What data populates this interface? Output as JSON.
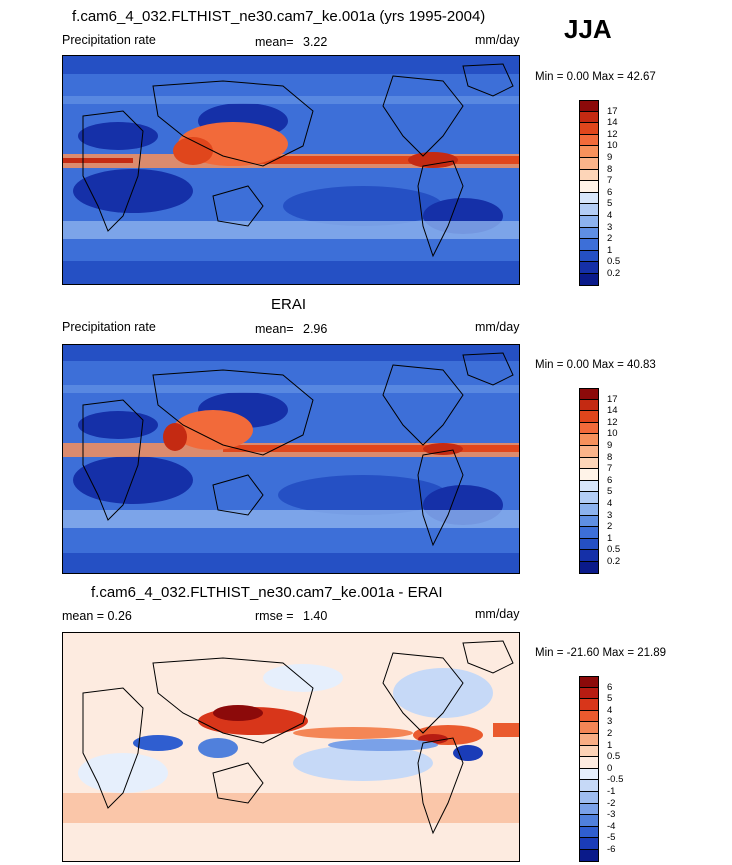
{
  "season": "JJA",
  "panels": [
    {
      "id": "model",
      "title": "f.cam6_4_032.FLTHIST_ne30.cam7_ke.001a (yrs 1995-2004)",
      "left_label": "Precipitation rate",
      "stat_label": "mean=",
      "stat_value": "3.22",
      "units": "mm/day",
      "min_max": "Min =   0.00 Max =  42.67"
    },
    {
      "id": "obs",
      "title": "ERAI",
      "left_label": "Precipitation rate",
      "stat_label": "mean=",
      "stat_value": "2.96",
      "units": "mm/day",
      "min_max": "Min =   0.00 Max =  40.83"
    },
    {
      "id": "diff",
      "title": "f.cam6_4_032.FLTHIST_ne30.cam7_ke.001a - ERAI",
      "left_label": "mean =   0.26",
      "stat_label": "rmse =",
      "stat_value": "1.40",
      "units": "mm/day",
      "min_max": "Min = -21.60 Max =  21.89"
    }
  ],
  "colorbar_precip": {
    "labels": [
      "17",
      "14",
      "12",
      "10",
      "9",
      "8",
      "7",
      "6",
      "5",
      "4",
      "3",
      "2",
      "1",
      "0.5",
      "0.2"
    ],
    "colors": [
      "#8c0a0a",
      "#c42a12",
      "#e0461c",
      "#f26a3a",
      "#f7915c",
      "#fbb48a",
      "#fdd5b8",
      "#fff3e8",
      "#d7e6fb",
      "#b3cdf5",
      "#8cb2ee",
      "#5f8fe3",
      "#3d6fd8",
      "#2550c4",
      "#1530a8",
      "#0a1a8a"
    ]
  },
  "colorbar_diff": {
    "labels": [
      "6",
      "5",
      "4",
      "3",
      "2",
      "1",
      "0.5",
      "0",
      "-0.5",
      "-1",
      "-2",
      "-3",
      "-4",
      "-5",
      "-6"
    ],
    "colors": [
      "#8c0a0a",
      "#b71c12",
      "#d8361a",
      "#ea5a2e",
      "#f48656",
      "#f9ad84",
      "#fcd2b6",
      "#fdebe0",
      "#e6effc",
      "#c6d9f7",
      "#9fbdf0",
      "#7aa1e8",
      "#5080dc",
      "#2f5ed0",
      "#1a3cb8",
      "#0a1a8a"
    ]
  }
}
